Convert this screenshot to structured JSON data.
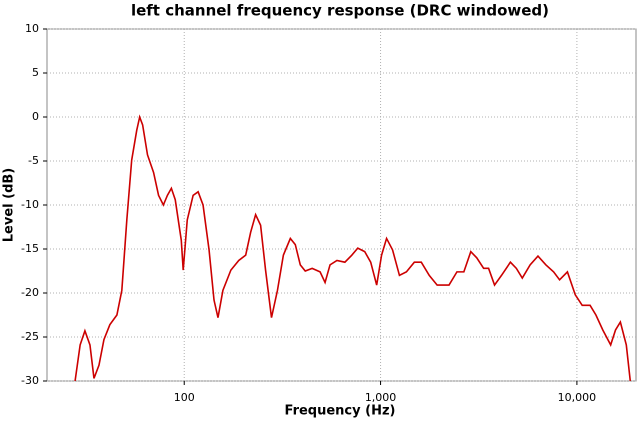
{
  "chart_data": {
    "type": "line",
    "title": "left channel frequency response (DRC windowed)",
    "x_label": "Frequency (Hz)",
    "y_label": "Level (dB)",
    "xscale": "log",
    "xlim": [
      20,
      20000
    ],
    "ylim": [
      -30,
      10
    ],
    "xticks": [
      100,
      {
        "value": 1000,
        "label": "1,000"
      },
      {
        "value": 10000,
        "label": "10,000"
      }
    ],
    "yticks": [
      10,
      5,
      0,
      -5,
      -10,
      -15,
      -20,
      -25,
      -30
    ],
    "grid": true,
    "series": [
      {
        "name": "left channel",
        "color": "#cc0000",
        "x": [
          27.8,
          29.5,
          31.2,
          33.1,
          34.7,
          36.8,
          39,
          41.8,
          45.4,
          48.1,
          51,
          54,
          57.3,
          59.3,
          61.4,
          65,
          69.8,
          74,
          78.3,
          82.1,
          86,
          90,
          96.6,
          98.8,
          103.6,
          111,
          117.7,
          124.7,
          133.8,
          141.8,
          148.6,
          157.4,
          172.8,
          189.5,
          205.6,
          217.9,
          231,
          244.9,
          259.6,
          278.3,
          298.4,
          319.9,
          347.1,
          367.9,
          390,
          413.4,
          448.4,
          492,
          521.6,
          552.9,
          599.6,
          658,
          713.7,
          765.5,
          830.5,
          890.7,
          955.4,
          1012,
          1073,
          1151,
          1248,
          1354,
          1486,
          1612,
          1770,
          1942,
          2232,
          2449,
          2656,
          2881,
          3089,
          3349,
          3550,
          3807,
          4129,
          4584,
          4915,
          5270,
          5779,
          6335,
          6945,
          7613,
          8163,
          8947,
          9810,
          10640,
          11670,
          12500,
          13550,
          14860,
          15730,
          16650,
          17850,
          18700
        ],
        "values": [
          -30,
          -25.9,
          -24.3,
          -25.9,
          -29.7,
          -28.2,
          -25.3,
          -23.6,
          -22.5,
          -19.7,
          -11.7,
          -4.9,
          -1.5,
          0,
          -0.9,
          -4.3,
          -6.3,
          -8.9,
          -10,
          -8.9,
          -8.1,
          -9.4,
          -14,
          -17.4,
          -11.7,
          -8.9,
          -8.5,
          -10,
          -15.1,
          -20.8,
          -22.8,
          -19.7,
          -17.4,
          -16.3,
          -15.7,
          -13.1,
          -11.1,
          -12.3,
          -17.4,
          -22.8,
          -19.7,
          -15.7,
          -13.8,
          -14.5,
          -16.8,
          -17.5,
          -17.2,
          -17.6,
          -18.8,
          -16.8,
          -16.3,
          -16.5,
          -15.7,
          -14.9,
          -15.3,
          -16.5,
          -19.1,
          -15.7,
          -13.8,
          -15.1,
          -18,
          -17.6,
          -16.5,
          -16.5,
          -18,
          -19.1,
          -19.1,
          -17.6,
          -17.6,
          -15.3,
          -16,
          -17.2,
          -17.2,
          -19.1,
          -18,
          -16.5,
          -17.2,
          -18.3,
          -16.8,
          -15.8,
          -16.8,
          -17.6,
          -18.5,
          -17.6,
          -20.2,
          -21.4,
          -21.4,
          -22.5,
          -24.2,
          -25.9,
          -24.2,
          -23.3,
          -25.9,
          -30
        ]
      }
    ]
  }
}
